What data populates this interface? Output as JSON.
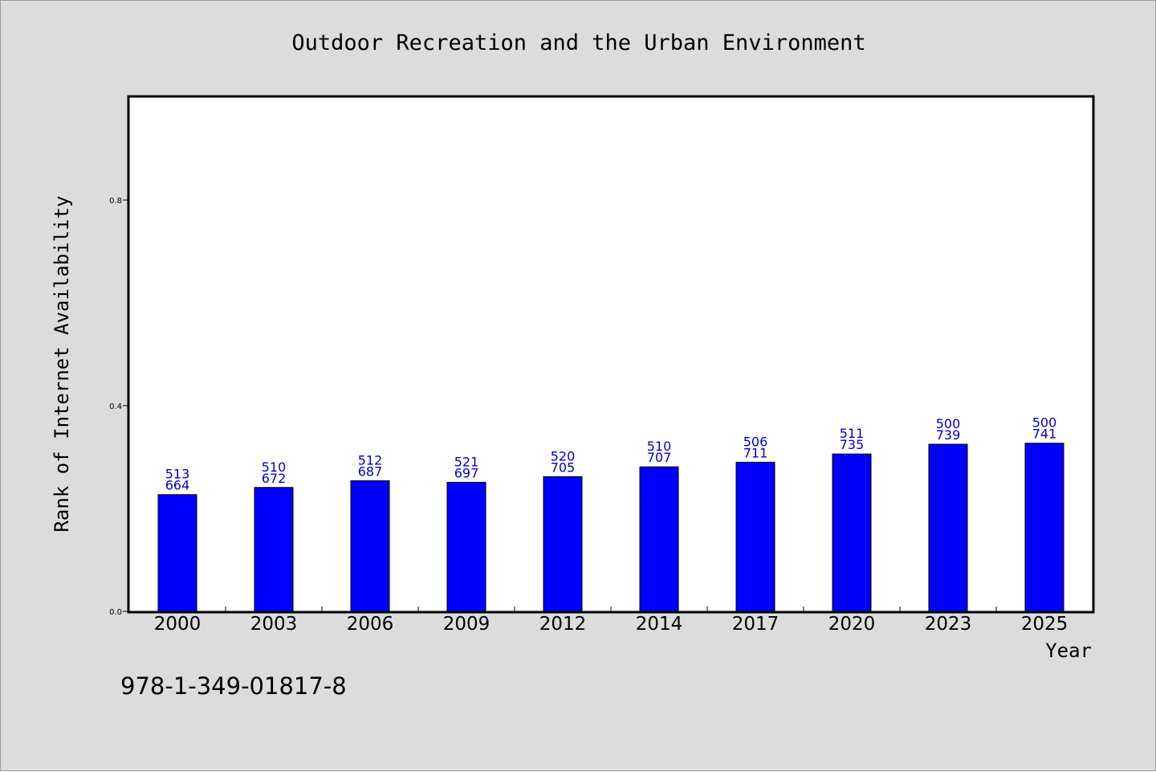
{
  "chart_data": {
    "type": "bar",
    "title": "Outdoor Recreation and the Urban Environment",
    "xlabel": "Year",
    "ylabel": "Rank of Internet Availability",
    "categories": [
      "2000",
      "2003",
      "2006",
      "2009",
      "2012",
      "2014",
      "2017",
      "2020",
      "2023",
      "2025"
    ],
    "values": [
      0.227,
      0.241,
      0.254,
      0.251,
      0.262,
      0.281,
      0.29,
      0.306,
      0.325,
      0.327
    ],
    "data_labels": [
      [
        "513",
        "664"
      ],
      [
        "510",
        "672"
      ],
      [
        "512",
        "687"
      ],
      [
        "521",
        "697"
      ],
      [
        "520",
        "705"
      ],
      [
        "510",
        "707"
      ],
      [
        "506",
        "711"
      ],
      [
        "511",
        "735"
      ],
      [
        "500",
        "739"
      ],
      [
        "500",
        "741"
      ]
    ],
    "ylim": [
      0,
      1.0
    ],
    "yticks": [
      0.0,
      0.4,
      0.8
    ],
    "ytick_labels": [
      "0.0",
      "0.4",
      "0.8"
    ],
    "grid": false,
    "colors": {
      "bar": "#0000ff",
      "bar_edge": "#000000",
      "data_label": "#0000cc",
      "background": "#dcdcdc",
      "plot_background": "#ffffff"
    }
  },
  "footer": {
    "isbn": "978-1-349-01817-8"
  }
}
